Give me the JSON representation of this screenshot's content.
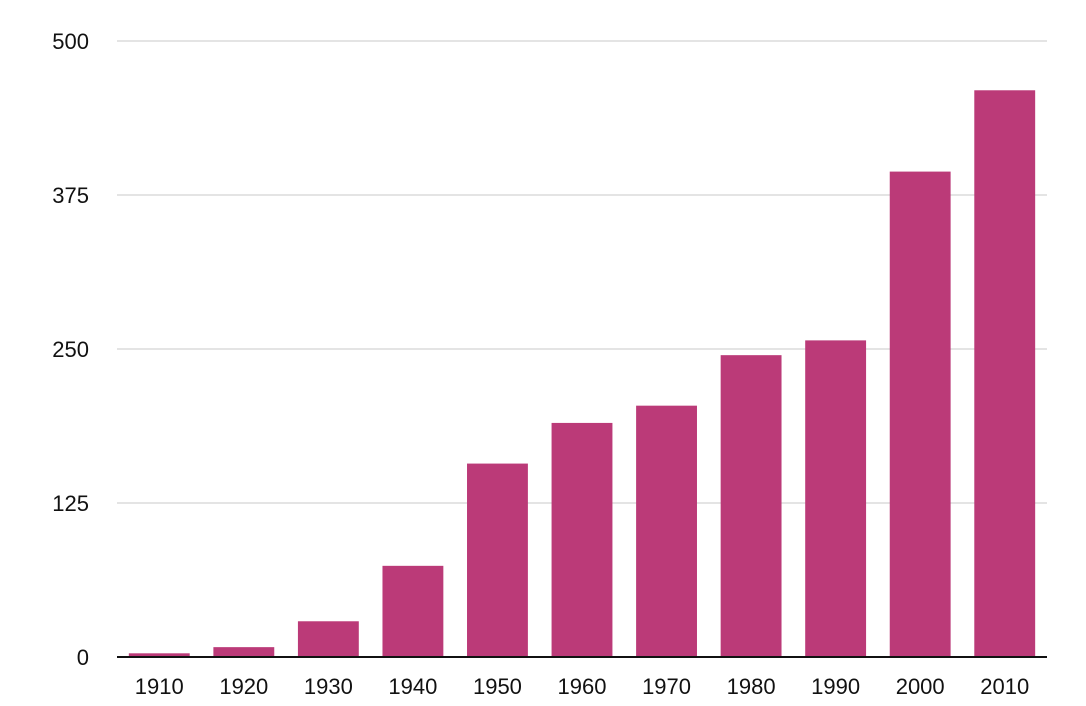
{
  "chart_data": {
    "type": "bar",
    "categories": [
      "1910",
      "1920",
      "1930",
      "1940",
      "1950",
      "1960",
      "1970",
      "1980",
      "1990",
      "2000",
      "2010"
    ],
    "values": [
      3,
      8,
      29,
      74,
      157,
      190,
      204,
      245,
      257,
      394,
      460
    ],
    "ylim": [
      0,
      500
    ],
    "yticks": [
      0,
      125,
      250,
      375,
      500
    ],
    "title": "",
    "xlabel": "",
    "ylabel": "",
    "grid": true,
    "bar_color": "#bb3a78"
  }
}
